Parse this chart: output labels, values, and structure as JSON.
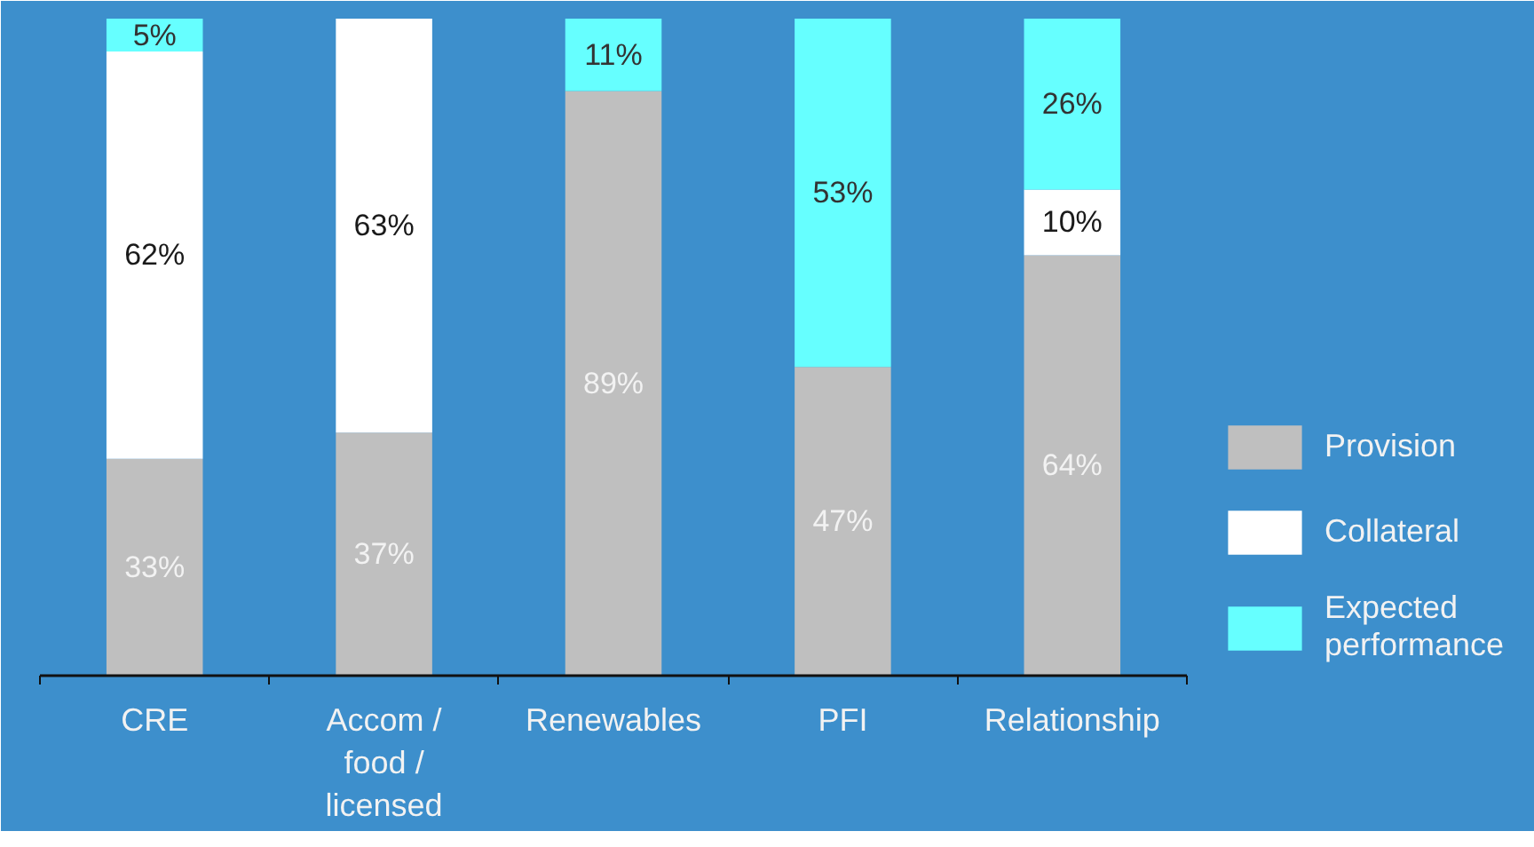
{
  "chart_data": {
    "type": "bar",
    "stacked": true,
    "categories": [
      "CRE",
      "Accom / food / licensed",
      "Renewables",
      "PFI",
      "Relationship"
    ],
    "series": [
      {
        "name": "Provision",
        "color": "#bfbfbf",
        "values": [
          33,
          37,
          89,
          47,
          64
        ],
        "value_labels": [
          "33%",
          "37%",
          "89%",
          "47%",
          "64%"
        ]
      },
      {
        "name": "Collateral",
        "color": "#ffffff",
        "values": [
          62,
          63,
          null,
          null,
          10
        ],
        "value_labels": [
          "62%",
          "63%",
          null,
          null,
          "10%"
        ]
      },
      {
        "name": "Expected performance",
        "color": "#66ffff",
        "values": [
          5,
          null,
          11,
          53,
          26
        ],
        "value_labels": [
          "5%",
          null,
          "11%",
          "53%",
          "26%"
        ]
      }
    ],
    "ylim": [
      0,
      100
    ],
    "tick_labels": "x",
    "legend": "right",
    "grid": false
  }
}
